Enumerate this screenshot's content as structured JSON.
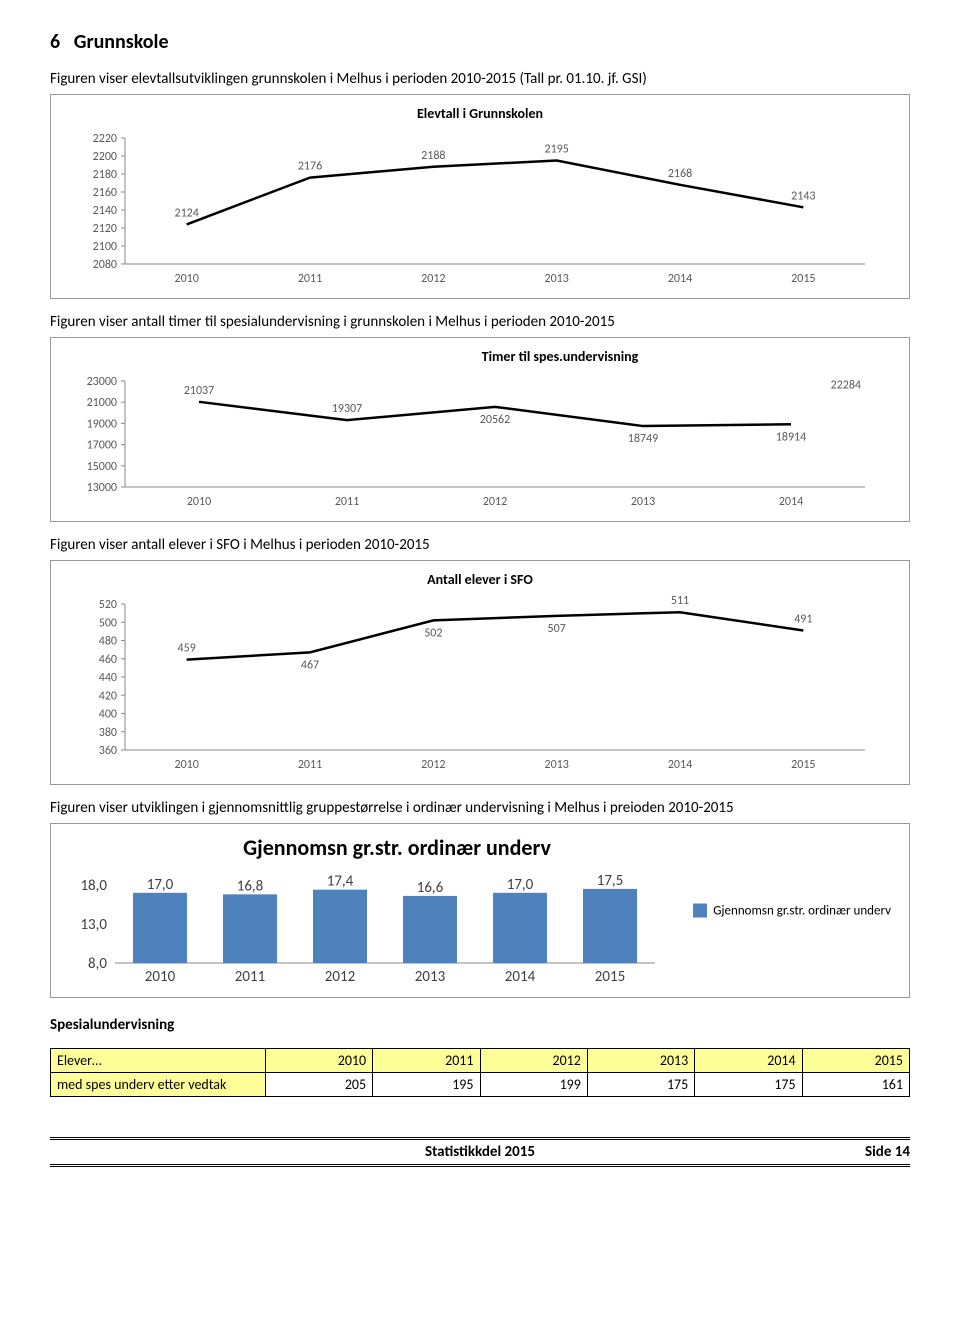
{
  "section": {
    "num": "6",
    "title": "Grunnskole"
  },
  "captions": {
    "c1": "Figuren viser elevtallsutviklingen grunnskolen i Melhus i perioden 2010-2015 (Tall pr. 01.10. jf. GSI)",
    "c2": "Figuren viser antall timer til spesialundervisning i grunnskolen i Melhus i perioden 2010-2015",
    "c3": "Figuren viser antall elever i SFO i Melhus i perioden 2010-2015",
    "c4": "Figuren viser utviklingen i gjennomsnittlig gruppestørrelse i ordinær undervisning i Melhus i preioden 2010-2015"
  },
  "chart1": {
    "title": "Elevtall i Grunnskolen",
    "years": [
      "2010",
      "2011",
      "2012",
      "2013",
      "2014",
      "2015"
    ],
    "values": [
      2124,
      2176,
      2188,
      2195,
      2168,
      2143
    ],
    "ymin": 2080,
    "ymax": 2220,
    "ystep": 20,
    "line_color": "#000000",
    "bg": "#ffffff"
  },
  "chart2": {
    "title": "Timer til spes.undervisning",
    "years": [
      "2010",
      "2011",
      "2012",
      "2013",
      "2014"
    ],
    "values": [
      21037,
      19307,
      20562,
      18749,
      18914
    ],
    "last_label": "22284",
    "ymin": 13000,
    "ymax": 23000,
    "ystep": 2000,
    "line_color": "#000000"
  },
  "chart3": {
    "title": "Antall elever i SFO",
    "years": [
      "2010",
      "2011",
      "2012",
      "2013",
      "2014",
      "2015"
    ],
    "values": [
      459,
      467,
      502,
      507,
      511,
      491
    ],
    "ymin": 360,
    "ymax": 520,
    "ystep": 20,
    "line_color": "#000000"
  },
  "chart4": {
    "title": "Gjennomsn gr.str. ordinær underv",
    "years": [
      "2010",
      "2011",
      "2012",
      "2013",
      "2014",
      "2015"
    ],
    "values": [
      17.0,
      16.8,
      17.4,
      16.6,
      17.0,
      17.5
    ],
    "labels": [
      "17,0",
      "16,8",
      "17,4",
      "16,6",
      "17,0",
      "17,5"
    ],
    "ymin": 8.0,
    "ymax": 18.0,
    "ystep": 5.0,
    "yticklabels": [
      "8,0",
      "13,0",
      "18,0"
    ],
    "bar_color": "#4f81bd",
    "legend": "Gjennomsn gr.str. ordinær underv"
  },
  "table": {
    "title": "Spesialundervisning",
    "row1_label": "Elever…",
    "headers": [
      "2010",
      "2011",
      "2012",
      "2013",
      "2014",
      "2015"
    ],
    "row2_label": "med spes underv etter vedtak",
    "row2": [
      "205",
      "195",
      "199",
      "175",
      "175",
      "161"
    ]
  },
  "footer": {
    "center": "Statistikkdel 2015",
    "right": "Side 14"
  }
}
